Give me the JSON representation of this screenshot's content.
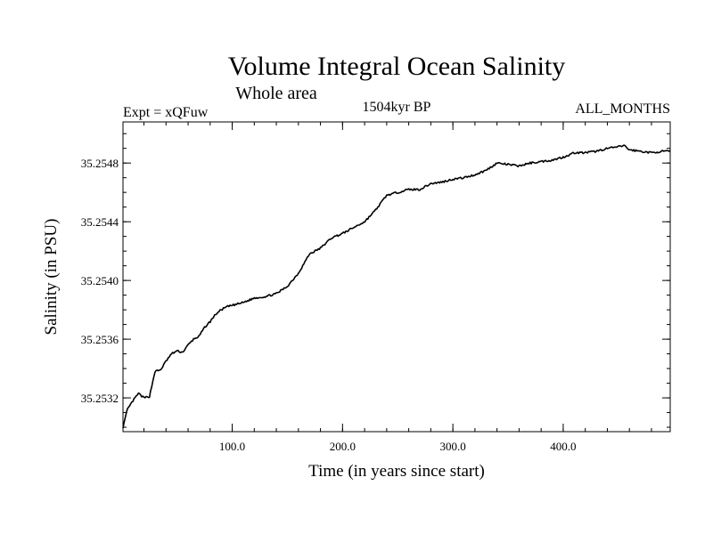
{
  "chart_data": {
    "type": "line",
    "title": "Volume Integral Ocean Salinity",
    "subtitle": "Whole area",
    "experiment": "Expt = xQFuw",
    "period": "1504kyr BP",
    "months": "ALL_MONTHS",
    "xlabel": "Time (in years since start)",
    "ylabel": "Salinity (in PSU)",
    "xlim": [
      1,
      497
    ],
    "ylim": [
      35.25297,
      35.25508
    ],
    "x_ticks": [
      {
        "value": 100,
        "label": "100.0"
      },
      {
        "value": 200,
        "label": "200.0"
      },
      {
        "value": 300,
        "label": "300.0"
      },
      {
        "value": 400,
        "label": "400.0"
      }
    ],
    "y_ticks": [
      {
        "value": 35.2532,
        "label": "35.2532"
      },
      {
        "value": 35.2536,
        "label": "35.2536"
      },
      {
        "value": 35.254,
        "label": "35.2540"
      },
      {
        "value": 35.2544,
        "label": "35.2544"
      },
      {
        "value": 35.2548,
        "label": "35.2548"
      }
    ],
    "series": [
      {
        "name": "Salinity",
        "color": "#000000",
        "x": [
          1,
          5,
          10,
          15,
          20,
          25,
          30,
          35,
          40,
          45,
          50,
          55,
          60,
          65,
          70,
          75,
          80,
          85,
          90,
          95,
          100,
          110,
          120,
          130,
          140,
          150,
          160,
          170,
          180,
          190,
          200,
          210,
          220,
          230,
          240,
          250,
          260,
          270,
          280,
          290,
          300,
          310,
          320,
          330,
          340,
          350,
          360,
          370,
          380,
          390,
          400,
          410,
          420,
          430,
          440,
          450,
          455,
          460,
          470,
          480,
          490,
          497
        ],
        "values": [
          35.253,
          35.25312,
          35.25318,
          35.25323,
          35.2532,
          35.25321,
          35.25338,
          35.25339,
          35.25345,
          35.2535,
          35.25352,
          35.25351,
          35.25356,
          35.2536,
          35.25362,
          35.25368,
          35.25372,
          35.25377,
          35.2538,
          35.25382,
          35.25383,
          35.25385,
          35.25388,
          35.25389,
          35.25391,
          35.25396,
          35.25405,
          35.25418,
          35.25422,
          35.25429,
          35.25432,
          35.25436,
          35.2544,
          35.25448,
          35.25458,
          35.2546,
          35.25462,
          35.25462,
          35.25466,
          35.25467,
          35.25469,
          35.2547,
          35.25472,
          35.25475,
          35.2548,
          35.25479,
          35.25478,
          35.2548,
          35.25481,
          35.25482,
          35.25484,
          35.25487,
          35.25487,
          35.25488,
          35.2549,
          35.25491,
          35.25492,
          35.25489,
          35.25488,
          35.25487,
          35.25488,
          35.25488
        ]
      }
    ]
  }
}
